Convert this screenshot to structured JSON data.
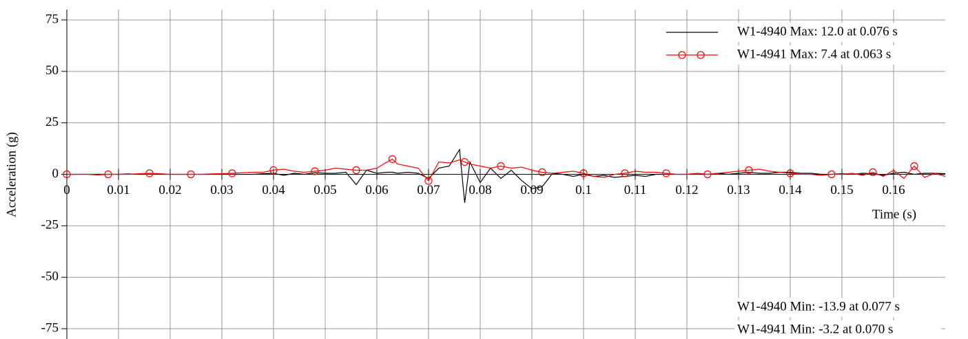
{
  "chart_data": {
    "type": "line",
    "xlabel": "Time (s)",
    "ylabel": "Acceleration (g)",
    "x": [
      0,
      0.002,
      0.004,
      0.006,
      0.008,
      0.01,
      0.012,
      0.014,
      0.016,
      0.018,
      0.02,
      0.022,
      0.024,
      0.026,
      0.028,
      0.03,
      0.032,
      0.034,
      0.036,
      0.038,
      0.04,
      0.042,
      0.044,
      0.046,
      0.048,
      0.05,
      0.052,
      0.054,
      0.056,
      0.058,
      0.06,
      0.062,
      0.063,
      0.064,
      0.066,
      0.068,
      0.07,
      0.072,
      0.074,
      0.076,
      0.077,
      0.078,
      0.08,
      0.082,
      0.084,
      0.086,
      0.088,
      0.09,
      0.092,
      0.094,
      0.096,
      0.098,
      0.1,
      0.102,
      0.104,
      0.106,
      0.108,
      0.11,
      0.112,
      0.114,
      0.116,
      0.118,
      0.12,
      0.122,
      0.124,
      0.126,
      0.128,
      0.13,
      0.132,
      0.134,
      0.136,
      0.138,
      0.14,
      0.142,
      0.144,
      0.146,
      0.148,
      0.15,
      0.152,
      0.154,
      0.156,
      0.158,
      0.16,
      0.162,
      0.164,
      0.166,
      0.168,
      0.17
    ],
    "series": [
      {
        "name": "W1-4940 Max: 12.0 at 0.076 s",
        "color": "#000000",
        "marker": "none",
        "values": [
          0,
          0,
          0,
          0,
          0,
          0,
          0.2,
          0,
          0,
          0,
          0,
          0,
          0,
          0,
          0,
          0,
          0,
          0,
          0,
          0.3,
          0.5,
          -0.5,
          0.5,
          0,
          0.8,
          0.5,
          0.5,
          1,
          -5,
          2,
          0.5,
          1,
          1,
          0.5,
          1,
          0.5,
          -2,
          3,
          4,
          12.0,
          -13.9,
          6,
          -4,
          3,
          -2,
          2,
          -3,
          -7,
          -6,
          0.5,
          0,
          -1,
          0,
          -1,
          -0.5,
          -1.5,
          -1,
          -0.5,
          -1,
          0,
          0,
          0,
          0,
          0,
          0,
          0.5,
          0,
          0.5,
          1,
          0.5,
          0.5,
          1,
          1,
          0.5,
          0.5,
          0,
          0,
          0.3,
          0,
          0.5,
          0.3,
          -0.5,
          0.5,
          1,
          0,
          0.5,
          0.5,
          0.3
        ]
      },
      {
        "name": "W1-4941 Max: 7.4 at 0.063 s",
        "color": "#ff0000",
        "marker": "circle",
        "values": [
          0,
          0,
          0,
          -0.3,
          0,
          0,
          0,
          0.3,
          0.5,
          0.3,
          0,
          0,
          0,
          0,
          0.2,
          0.3,
          0.5,
          0.8,
          1,
          1,
          2,
          2.5,
          1.5,
          1,
          1.5,
          2,
          3,
          2.5,
          2,
          2,
          3,
          6,
          7.4,
          5,
          4,
          3,
          -3.2,
          6,
          5.5,
          7,
          6,
          5,
          4,
          3,
          4,
          3,
          3.5,
          2,
          1,
          0.5,
          1,
          1.5,
          0.5,
          -1,
          -1.5,
          0,
          0.5,
          1.5,
          1,
          1,
          0.5,
          0,
          0,
          0.5,
          0,
          0.5,
          1,
          1.5,
          2,
          2.5,
          1.5,
          1,
          0.5,
          0,
          0,
          -0.5,
          0,
          0,
          0.5,
          -0.5,
          1,
          -1,
          2,
          -2,
          4,
          -1.5,
          0.5,
          -1
        ]
      }
    ],
    "annotations": [
      "W1-4940 Min: -13.9 at 0.077 s",
      "W1-4941 Min: -3.2 at 0.070 s"
    ],
    "xlim": [
      0,
      0.17
    ],
    "ylim": [
      -80,
      80
    ],
    "xticks": [
      0,
      0.01,
      0.02,
      0.03,
      0.04,
      0.05,
      0.06,
      0.07,
      0.08,
      0.09,
      0.1,
      0.11,
      0.12,
      0.13,
      0.14,
      0.15,
      0.16
    ],
    "yticks": [
      -75,
      -50,
      -25,
      0,
      25,
      50,
      75
    ],
    "grid": true,
    "legend": "upper right"
  }
}
